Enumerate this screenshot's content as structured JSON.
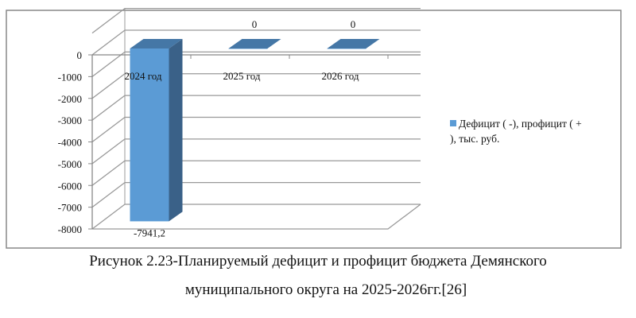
{
  "chart_data": {
    "type": "bar",
    "style": "3d-column",
    "categories": [
      "2024 год",
      "2025 год",
      "2026 год"
    ],
    "series": [
      {
        "name": "Дефицит ( -), профицит ( + ), тыс. руб.",
        "values": [
          -7941.2,
          0,
          0
        ],
        "color": "#5B9BD5"
      }
    ],
    "data_labels": [
      "-7941,2",
      "0",
      "0"
    ],
    "yticks": [
      "0",
      "-1000",
      "-2000",
      "-3000",
      "-4000",
      "-5000",
      "-6000",
      "-7000",
      "-8000"
    ],
    "ylim": [
      -8000,
      1000
    ],
    "grid": true,
    "legend_position": "right",
    "legend": {
      "label_line1": "Дефицит ( -), профицит ( +",
      "label_line2": "), тыс. руб."
    }
  },
  "caption": {
    "line1": "Рисунок 2.23-Планируемый дефицит и профицит бюджета Демянского",
    "line2": "муниципального округа на 2025-2026гг.[26]"
  }
}
